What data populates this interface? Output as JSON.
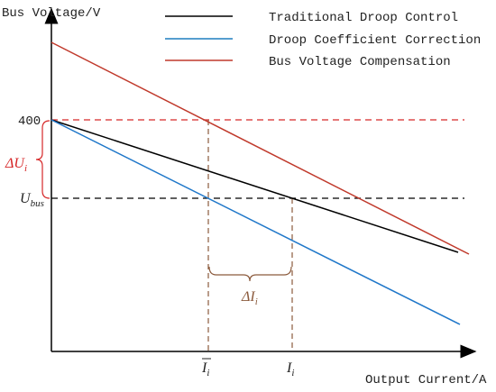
{
  "axes": {
    "y_label": "Bus Voltage/V",
    "x_label": "Output Current/A"
  },
  "legend": [
    "Traditional Droop Control",
    "Droop Coefficient Correction",
    "Bus Voltage Compensation"
  ],
  "labels": {
    "v400": "400",
    "u_bus": {
      "main": "U",
      "sub": "bus"
    },
    "delta_u": {
      "main": "ΔU",
      "sub": "i"
    },
    "delta_i": {
      "main": "ΔI",
      "sub": "i"
    },
    "i_bar": {
      "main": "I",
      "sub": "i"
    },
    "i": {
      "main": "I",
      "sub": "i"
    }
  }
}
